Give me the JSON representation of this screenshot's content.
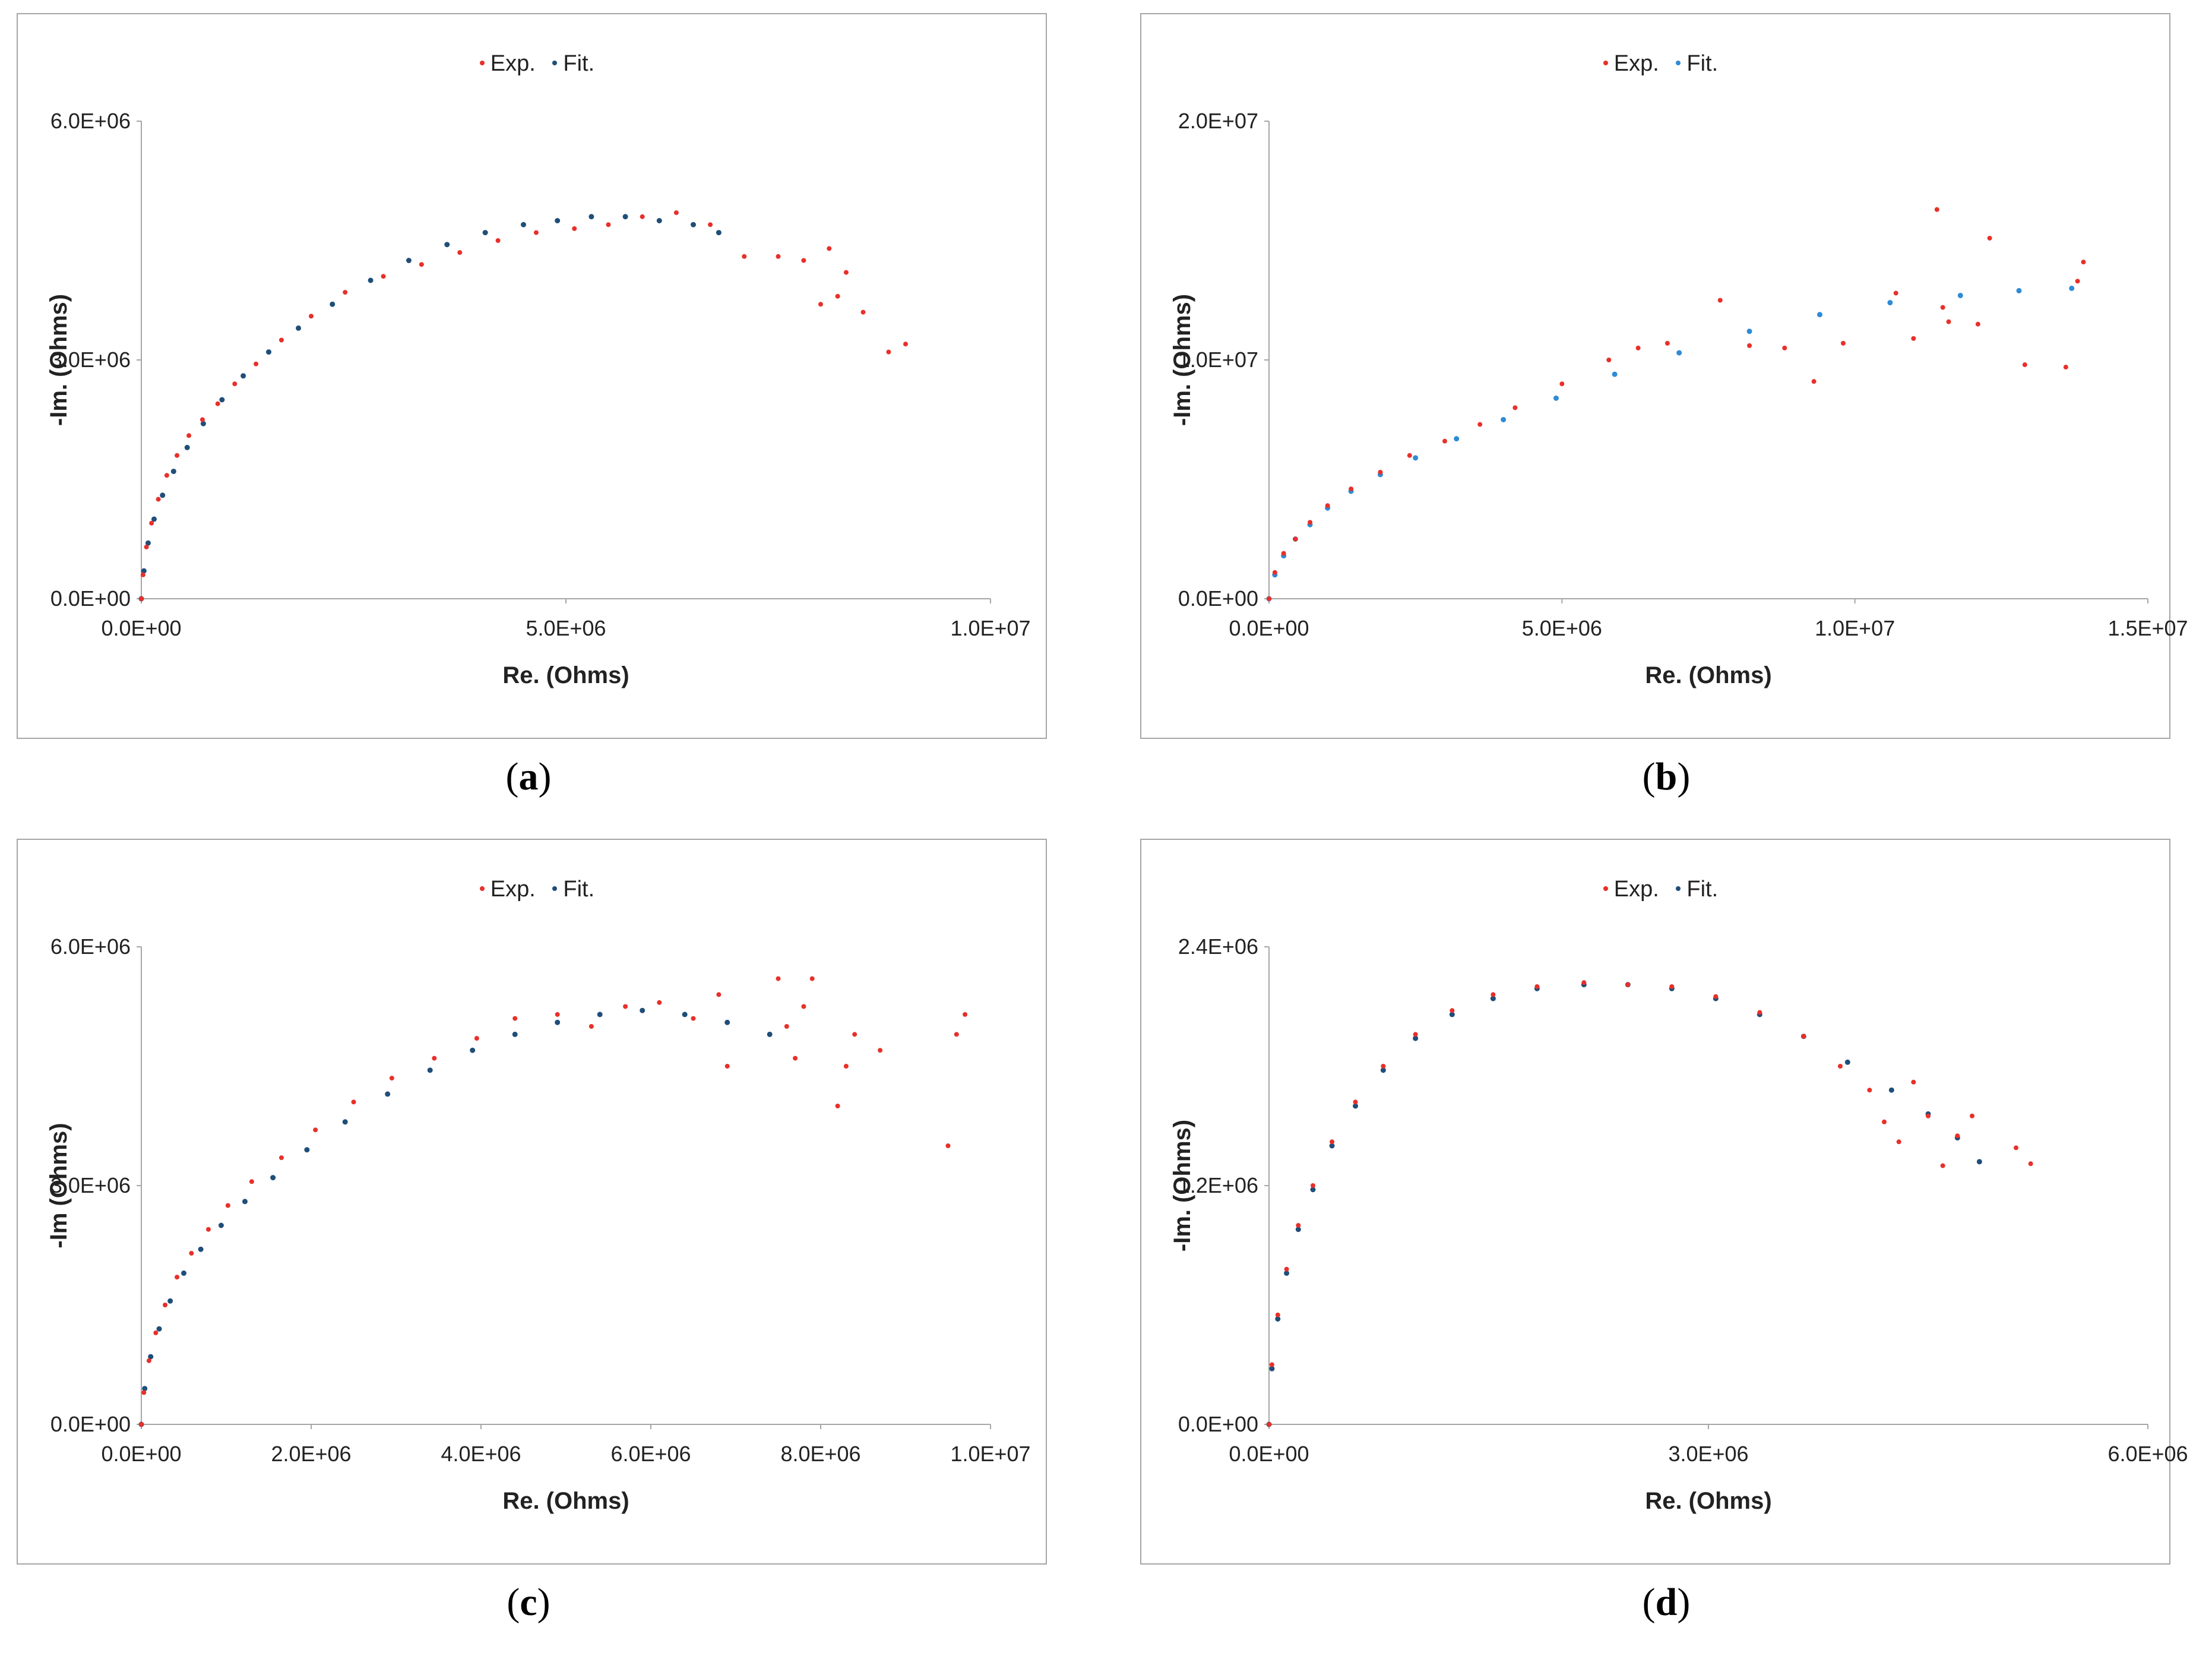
{
  "colors": {
    "exp": "#e8302a",
    "fit_dark": "#1f4e79",
    "fit_light": "#2e8bd6",
    "axis": "#a6a6a6"
  },
  "chart_data": [
    {
      "type": "scatter",
      "caption": "a",
      "legend": [
        "Exp.",
        "Fit."
      ],
      "xlabel": "Re. (Ohms)",
      "ylabel": "-Im. (Ohms)",
      "xlim": [
        0,
        10000000
      ],
      "ylim": [
        0,
        6000000
      ],
      "xticks": [
        "0.0E+00",
        "5.0E+06",
        "1.0E+07"
      ],
      "yticks": [
        "0.0E+00",
        "3.0E+06",
        "6.0E+06"
      ],
      "grid": false,
      "fit_color": "dark",
      "series": [
        {
          "name": "Exp.",
          "x": [
            0,
            20000,
            60000,
            120000,
            200000,
            300000,
            420000,
            560000,
            720000,
            900000,
            1100000,
            1350000,
            1650000,
            2000000,
            2400000,
            2850000,
            3300000,
            3750000,
            4200000,
            4650000,
            5100000,
            5500000,
            5900000,
            6300000,
            6700000,
            7100000,
            7500000,
            7800000,
            8000000,
            8100000,
            8200000,
            8300000,
            8500000,
            8800000,
            9000000
          ],
          "y": [
            0,
            300000,
            650000,
            950000,
            1250000,
            1550000,
            1800000,
            2050000,
            2250000,
            2450000,
            2700000,
            2950000,
            3250000,
            3550000,
            3850000,
            4050000,
            4200000,
            4350000,
            4500000,
            4600000,
            4650000,
            4700000,
            4800000,
            4850000,
            4700000,
            4300000,
            4300000,
            4250000,
            3700000,
            4400000,
            3800000,
            4100000,
            3600000,
            3100000,
            3200000
          ]
        },
        {
          "name": "Fit.",
          "x": [
            0,
            30000,
            80000,
            150000,
            250000,
            380000,
            540000,
            730000,
            950000,
            1200000,
            1500000,
            1850000,
            2250000,
            2700000,
            3150000,
            3600000,
            4050000,
            4500000,
            4900000,
            5300000,
            5700000,
            6100000,
            6500000,
            6800000
          ],
          "y": [
            0,
            350000,
            700000,
            1000000,
            1300000,
            1600000,
            1900000,
            2200000,
            2500000,
            2800000,
            3100000,
            3400000,
            3700000,
            4000000,
            4250000,
            4450000,
            4600000,
            4700000,
            4750000,
            4800000,
            4800000,
            4750000,
            4700000,
            4600000
          ]
        }
      ]
    },
    {
      "type": "scatter",
      "caption": "b",
      "legend": [
        "Exp.",
        "Fit."
      ],
      "xlabel": "Re. (Ohms)",
      "ylabel": "-Im. (Ohms)",
      "xlim": [
        0,
        15000000
      ],
      "ylim": [
        0,
        20000000
      ],
      "xticks": [
        "0.0E+00",
        "5.0E+06",
        "1.0E+07",
        "1.5E+07"
      ],
      "yticks": [
        "0.0E+00",
        "1.0E+07",
        "2.0E+07"
      ],
      "grid": false,
      "fit_color": "light",
      "series": [
        {
          "name": "Exp.",
          "x": [
            0,
            100000,
            250000,
            450000,
            700000,
            1000000,
            1400000,
            1900000,
            2400000,
            3000000,
            3600000,
            4200000,
            5000000,
            5800000,
            6300000,
            6800000,
            7700000,
            8200000,
            8800000,
            9300000,
            9800000,
            10700000,
            11000000,
            11400000,
            11500000,
            11600000,
            12100000,
            12300000,
            12900000,
            13600000,
            13800000,
            13900000
          ],
          "y": [
            0,
            1100000,
            1900000,
            2500000,
            3200000,
            3900000,
            4600000,
            5300000,
            6000000,
            6600000,
            7300000,
            8000000,
            9000000,
            10000000,
            10500000,
            10700000,
            12500000,
            10600000,
            10500000,
            9100000,
            10700000,
            12800000,
            10900000,
            16300000,
            12200000,
            11600000,
            11500000,
            15100000,
            9800000,
            9700000,
            13300000,
            14100000
          ]
        },
        {
          "name": "Fit.",
          "x": [
            0,
            100000,
            250000,
            450000,
            700000,
            1000000,
            1400000,
            1900000,
            2500000,
            3200000,
            4000000,
            4900000,
            5900000,
            7000000,
            8200000,
            9400000,
            10600000,
            11800000,
            12800000,
            13700000
          ],
          "y": [
            0,
            1000000,
            1800000,
            2500000,
            3100000,
            3800000,
            4500000,
            5200000,
            5900000,
            6700000,
            7500000,
            8400000,
            9400000,
            10300000,
            11200000,
            11900000,
            12400000,
            12700000,
            12900000,
            13000000
          ]
        }
      ]
    },
    {
      "type": "scatter",
      "caption": "c",
      "legend": [
        "Exp.",
        "Fit."
      ],
      "xlabel": "Re. (Ohms)",
      "ylabel": "-Im (Ohms)",
      "xlim": [
        0,
        10000000
      ],
      "ylim": [
        0,
        6000000
      ],
      "xticks": [
        "0.0E+00",
        "2.0E+06",
        "4.0E+06",
        "6.0E+06",
        "8.0E+06",
        "1.0E+07"
      ],
      "yticks": [
        "0.0E+00",
        "3.0E+06",
        "6.0E+06"
      ],
      "grid": false,
      "fit_color": "dark",
      "series": [
        {
          "name": "Exp.",
          "x": [
            0,
            30000,
            90000,
            170000,
            280000,
            420000,
            590000,
            790000,
            1020000,
            1300000,
            1650000,
            2050000,
            2500000,
            2950000,
            3450000,
            3950000,
            4400000,
            4900000,
            5300000,
            5700000,
            6100000,
            6500000,
            6800000,
            6900000,
            7500000,
            7600000,
            7700000,
            7800000,
            7900000,
            8200000,
            8300000,
            8400000,
            8700000,
            9500000,
            9600000,
            9700000
          ],
          "y": [
            0,
            400000,
            800000,
            1150000,
            1500000,
            1850000,
            2150000,
            2450000,
            2750000,
            3050000,
            3350000,
            3700000,
            4050000,
            4350000,
            4600000,
            4850000,
            5100000,
            5150000,
            5000000,
            5250000,
            5300000,
            5100000,
            5400000,
            4500000,
            5600000,
            5000000,
            4600000,
            5250000,
            5600000,
            4000000,
            4500000,
            4900000,
            4700000,
            3500000,
            4900000,
            5150000
          ]
        },
        {
          "name": "Fit.",
          "x": [
            0,
            40000,
            110000,
            210000,
            340000,
            500000,
            700000,
            940000,
            1220000,
            1550000,
            1950000,
            2400000,
            2900000,
            3400000,
            3900000,
            4400000,
            4900000,
            5400000,
            5900000,
            6400000,
            6900000,
            7400000
          ],
          "y": [
            0,
            450000,
            850000,
            1200000,
            1550000,
            1900000,
            2200000,
            2500000,
            2800000,
            3100000,
            3450000,
            3800000,
            4150000,
            4450000,
            4700000,
            4900000,
            5050000,
            5150000,
            5200000,
            5150000,
            5050000,
            4900000
          ]
        }
      ]
    },
    {
      "type": "scatter",
      "caption": "d",
      "legend": [
        "Exp.",
        "Fit."
      ],
      "xlabel": "Re. (Ohms)",
      "ylabel": "-Im. (Ohms)",
      "xlim": [
        0,
        6000000
      ],
      "ylim": [
        0,
        2400000
      ],
      "xticks": [
        "0.0E+00",
        "3.0E+06",
        "6.0E+06"
      ],
      "yticks": [
        "0.0E+00",
        "1.2E+06",
        "2.4E+06"
      ],
      "grid": false,
      "fit_color": "dark",
      "series": [
        {
          "name": "Exp.",
          "x": [
            0,
            20000,
            60000,
            120000,
            200000,
            300000,
            430000,
            590000,
            780000,
            1000000,
            1250000,
            1530000,
            1830000,
            2150000,
            2450000,
            2750000,
            3050000,
            3350000,
            3650000,
            3900000,
            4100000,
            4200000,
            4300000,
            4400000,
            4500000,
            4600000,
            4700000,
            4800000,
            5100000,
            5200000
          ],
          "y": [
            0,
            300000,
            550000,
            780000,
            1000000,
            1200000,
            1420000,
            1620000,
            1800000,
            1960000,
            2080000,
            2160000,
            2200000,
            2220000,
            2210000,
            2200000,
            2150000,
            2070000,
            1950000,
            1800000,
            1680000,
            1520000,
            1420000,
            1720000,
            1550000,
            1300000,
            1450000,
            1550000,
            1390000,
            1310000
          ]
        },
        {
          "name": "Fit.",
          "x": [
            0,
            20000,
            60000,
            120000,
            200000,
            300000,
            430000,
            590000,
            780000,
            1000000,
            1250000,
            1530000,
            1830000,
            2150000,
            2450000,
            2750000,
            3050000,
            3350000,
            3650000,
            3950000,
            4250000,
            4500000,
            4700000,
            4850000
          ],
          "y": [
            0,
            280000,
            530000,
            760000,
            980000,
            1180000,
            1400000,
            1600000,
            1780000,
            1940000,
            2060000,
            2140000,
            2190000,
            2210000,
            2210000,
            2190000,
            2140000,
            2060000,
            1950000,
            1820000,
            1680000,
            1560000,
            1440000,
            1320000
          ]
        }
      ]
    }
  ]
}
